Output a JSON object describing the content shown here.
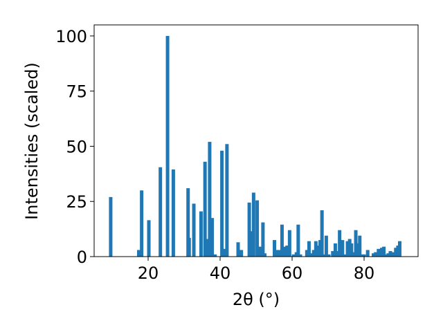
{
  "chart_data": {
    "type": "bar",
    "xlabel": "2θ (°)",
    "ylabel": "Intensities (scaled)",
    "xlim": [
      5,
      95
    ],
    "ylim": [
      0,
      105
    ],
    "xticks": [
      20,
      40,
      60,
      80
    ],
    "yticks": [
      0,
      25,
      50,
      75,
      100
    ],
    "grid": false,
    "bar_color": "#1f77b4",
    "x": [
      9.6,
      17.4,
      18.2,
      20.2,
      23.4,
      25.4,
      27.0,
      31.1,
      31.4,
      32.7,
      34.7,
      35.8,
      36.4,
      37.1,
      37.8,
      38.6,
      40.5,
      41.3,
      41.9,
      45.0,
      45.9,
      48.1,
      48.5,
      48.9,
      49.3,
      50.3,
      51.1,
      51.9,
      52.4,
      55.1,
      55.8,
      56.4,
      57.2,
      57.9,
      58.6,
      59.3,
      60.4,
      61.2,
      61.7,
      62.3,
      64.1,
      64.7,
      65.3,
      66.0,
      66.6,
      67.2,
      67.8,
      68.3,
      69.0,
      69.5,
      70.2,
      71.3,
      72.0,
      72.7,
      73.2,
      74.0,
      74.8,
      75.4,
      76.0,
      76.5,
      77.1,
      77.7,
      78.3,
      78.8,
      79.4,
      80.0,
      81.0,
      82.6,
      83.2,
      84.0,
      84.9,
      85.5,
      86.1,
      86.7,
      87.3,
      88.1,
      88.8,
      89.4,
      89.9
    ],
    "values": [
      27,
      3,
      30,
      16.5,
      40.5,
      100,
      39.5,
      31,
      8.5,
      24,
      20.5,
      43,
      8,
      52,
      17.5,
      1,
      48,
      3.5,
      51,
      6.5,
      3,
      24.5,
      11.5,
      5,
      29,
      25.5,
      4.5,
      15.5,
      1.5,
      7.5,
      3,
      3,
      14.5,
      4.5,
      5,
      12,
      1,
      2,
      14.5,
      1,
      3,
      7,
      1.5,
      3,
      7,
      5,
      7.5,
      21,
      1,
      9.5,
      1,
      2.5,
      6,
      2.5,
      12,
      7.5,
      1,
      7,
      8,
      6,
      2,
      12,
      6,
      9.5,
      1,
      1,
      3,
      1.5,
      2,
      3.5,
      4,
      4.5,
      1,
      1.5,
      2.5,
      2,
      4,
      5,
      7
    ]
  }
}
